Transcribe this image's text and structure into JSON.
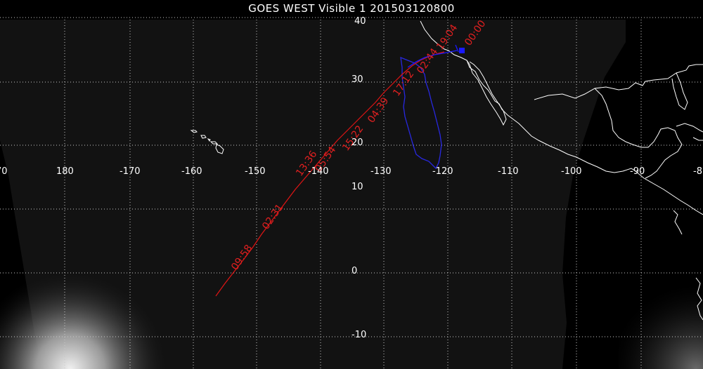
{
  "title": "GOES WEST Visible 1 201503120800",
  "colors": {
    "background": "#000000",
    "disk": "#121212",
    "grid": "#c8c8c8",
    "coast": "#ffffff",
    "trajectory_forecast": "#e01515",
    "trajectory_observed": "#1a1aff",
    "cloud_outline": "#2828e0"
  },
  "map": {
    "projection": "satellite full-disk view, GOES West",
    "lon_labels": [
      "70",
      "180",
      "-170",
      "-160",
      "-150",
      "-140",
      "-130",
      "-120",
      "-110",
      "-100",
      "-90",
      "-8"
    ],
    "lat_labels": [
      "40",
      "30",
      "20",
      "10",
      "0",
      "-10"
    ]
  },
  "trajectory": {
    "time_labels": [
      "00:00",
      "19:04",
      "02:44",
      "17:12",
      "04:39",
      "15:22",
      "05:54",
      "13:36",
      "09:58",
      "02:31"
    ]
  },
  "markers": {
    "origin": "blue square marker"
  }
}
